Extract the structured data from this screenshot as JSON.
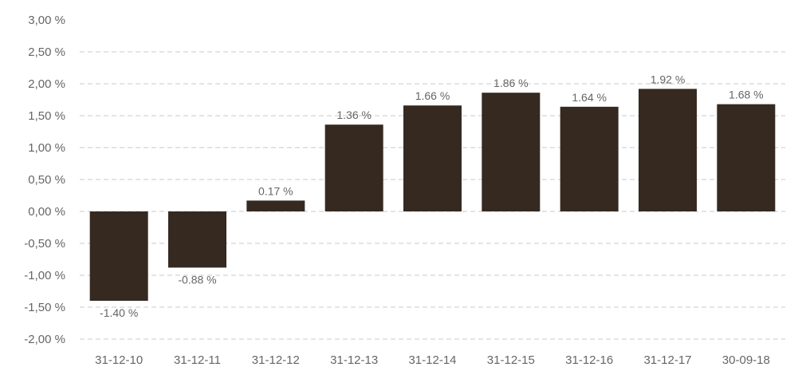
{
  "chart_data": {
    "type": "bar",
    "title": "",
    "xlabel": "",
    "ylabel": "",
    "categories": [
      "31-12-10",
      "31-12-11",
      "31-12-12",
      "31-12-13",
      "31-12-14",
      "31-12-15",
      "31-12-16",
      "31-12-17",
      "30-09-18"
    ],
    "values": [
      -1.4,
      -0.88,
      0.17,
      1.36,
      1.66,
      1.86,
      1.64,
      1.92,
      1.68
    ],
    "data_labels": [
      "-1.40 %",
      "-0.88 %",
      "0.17 %",
      "1.36 %",
      "1.66 %",
      "1.86 %",
      "1.64 %",
      "1.92 %",
      "1.68 %"
    ],
    "ylim": [
      -2.0,
      3.0
    ],
    "yticks": [
      3.0,
      2.5,
      2.0,
      1.5,
      1.0,
      0.5,
      0.0,
      -0.5,
      -1.0,
      -1.5,
      -2.0
    ],
    "ytick_labels": [
      "3,00 %",
      "2,50 %",
      "2,00 %",
      "1,50 %",
      "1,00 %",
      "0,50 %",
      "0,00 %",
      "-0,50 %",
      "-1,00 %",
      "-1,50 %",
      "-2,00 %"
    ],
    "grid": true,
    "legend": "none",
    "bar_color": "#352920",
    "grid_color": "#c8c8c8",
    "text_color": "#666666"
  }
}
